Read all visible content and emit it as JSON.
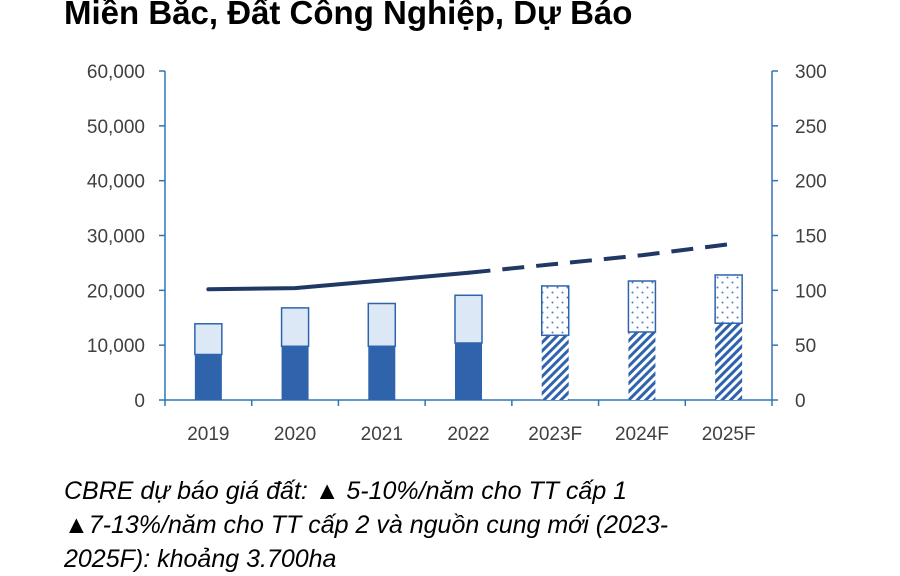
{
  "title": "Miền Bắc, Đất Công Nghiệp, Dự Báo",
  "caption": {
    "line1": "CBRE dự báo giá đất: ▲ 5-10%/năm cho TT cấp 1",
    "line2": "▲7-13%/năm cho TT cấp 2 và nguồn cung mới (2023-",
    "line3": "2025F): khoảng 3.700ha"
  },
  "colors": {
    "axis": "#2e75b6",
    "bar_lower": "#2f64ad",
    "bar_upper": "#dce8f6",
    "bar_border": "#2f64ad",
    "line": "#1f3864"
  },
  "chart_data": {
    "type": "bar",
    "categories": [
      "2019",
      "2020",
      "2021",
      "2022",
      "2023F",
      "2024F",
      "2025F"
    ],
    "forecast_from_index": 4,
    "series": [
      {
        "axis": "left",
        "values": [
          8300,
          9800,
          9800,
          10400,
          11800,
          12400,
          14000
        ]
      },
      {
        "axis": "left",
        "values": [
          5600,
          7000,
          7800,
          8700,
          9000,
          9300,
          8800
        ]
      },
      {
        "type": "line",
        "axis": "right",
        "values": [
          101,
          102,
          109,
          116,
          124,
          132,
          142
        ]
      }
    ],
    "stacked": true,
    "ylim_left": [
      0,
      60000
    ],
    "ylim_right": [
      0,
      300
    ],
    "yticks_left": [
      "0",
      "10,000",
      "20,000",
      "30,000",
      "40,000",
      "50,000",
      "60,000"
    ],
    "yticks_right": [
      "0",
      "50",
      "100",
      "150",
      "200",
      "250",
      "300"
    ],
    "legend": "none",
    "grid": false
  }
}
